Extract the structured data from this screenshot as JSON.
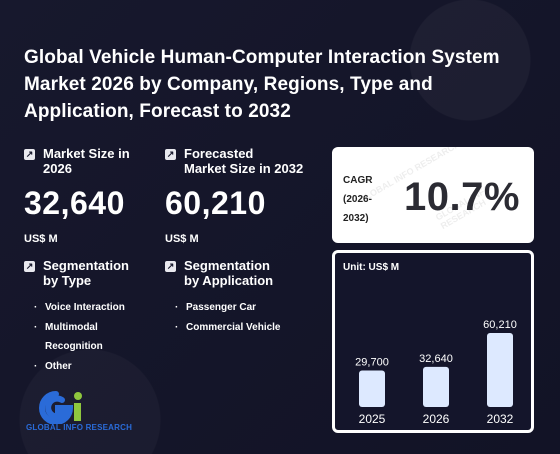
{
  "title": "Global Vehicle Human-Computer Interaction System Market 2026 by Company, Regions, Type and Application, Forecast to 2032",
  "market_size": {
    "label_lines": [
      "Market Size in",
      "2026"
    ],
    "value": "32,640",
    "unit": "US$ M"
  },
  "forecast": {
    "label_lines": [
      "Forecasted",
      "Market Size in 2032"
    ],
    "value": "60,210",
    "unit": "US$ M"
  },
  "seg_type": {
    "label_lines": [
      "Segmentation",
      "by Type"
    ],
    "items": [
      "Voice Interaction",
      "Multimodal",
      "Recognition",
      "Other"
    ]
  },
  "seg_app": {
    "label_lines": [
      "Segmentation",
      "by Application"
    ],
    "items": [
      "Passenger Car",
      "Commercial Vehicle"
    ]
  },
  "cagr": {
    "label_lines": [
      "CAGR",
      "(2026-",
      "2032)"
    ],
    "value": "10.7%"
  },
  "logo": {
    "text": "GLOBAL INFO RESEARCH"
  },
  "chart_data": {
    "type": "bar",
    "unit_label": "Unit: US$ M",
    "categories": [
      "2025",
      "2026",
      "2032"
    ],
    "values": [
      29700,
      32640,
      60210
    ],
    "value_labels": [
      "29,700",
      "32,640",
      "60,210"
    ],
    "ylim": [
      0,
      60210
    ],
    "bar_color": "#dde9ff"
  }
}
